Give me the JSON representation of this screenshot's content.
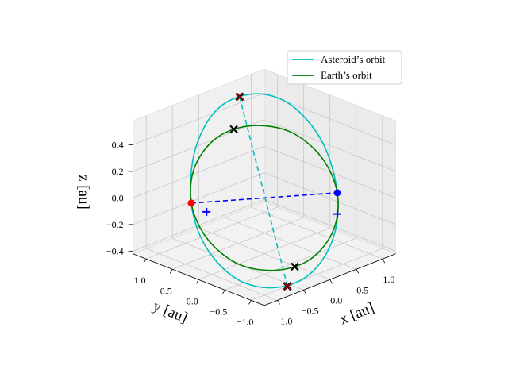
{
  "chart_data": {
    "type": "line3d",
    "xlabel": "x [au]",
    "ylabel": "y [au]",
    "zlabel": "z [au]",
    "xlim": [
      -1.25,
      1.25
    ],
    "ylim": [
      -1.25,
      1.25
    ],
    "zlim": [
      -0.42,
      0.58
    ],
    "xticks": [
      {
        "value": -1,
        "label": "−1.0"
      },
      {
        "value": -0.5,
        "label": "−0.5"
      },
      {
        "value": 0,
        "label": "0.0"
      },
      0.5,
      {
        "value": 1,
        "label": "1.0"
      }
    ],
    "yticks": [
      {
        "value": -1,
        "label": "−1.0"
      },
      {
        "value": -0.5,
        "label": "−0.5"
      },
      {
        "value": 0,
        "label": "0.0"
      },
      0.5,
      {
        "value": 1,
        "label": "1.0"
      }
    ],
    "zticks": [
      {
        "value": -0.4,
        "label": "−0.4"
      },
      {
        "value": -0.2,
        "label": "−0.2"
      },
      {
        "value": 0,
        "label": "0.0"
      },
      0.2,
      0.4
    ],
    "grid": true,
    "legend": "upper right",
    "series": [
      {
        "name": "Asteroid’s orbit",
        "color": "#00bfbf",
        "x": [
          0.82,
          0.98,
          0.87,
          0.54,
          0.05,
          -0.44,
          -0.82,
          -0.94,
          -0.81,
          -0.46,
          0.01,
          0.48
        ],
        "y": [
          -0.57,
          -0.12,
          0.38,
          0.76,
          0.95,
          0.88,
          0.57,
          0.17,
          -0.29,
          -0.66,
          -0.86,
          -0.83
        ],
        "z": [
          0,
          0.29,
          0.51,
          0.58,
          0.51,
          0.29,
          0,
          -0.25,
          -0.44,
          -0.5,
          -0.44,
          -0.25
        ]
      },
      {
        "name": "Earth’s orbit",
        "color": "#008000",
        "x": [
          0.82,
          0.98,
          0.88,
          0.54,
          0.06,
          -0.44,
          -0.82,
          -0.98,
          -0.88,
          -0.54,
          -0.06,
          0.44
        ],
        "y": [
          -0.57,
          -0.11,
          0.38,
          0.77,
          0.95,
          0.88,
          0.57,
          0.11,
          -0.38,
          -0.77,
          -0.95,
          -0.88
        ],
        "z": [
          0,
          0.17,
          0.3,
          0.34,
          0.3,
          0.17,
          0,
          -0.17,
          -0.3,
          -0.34,
          -0.3,
          -0.17
        ]
      }
    ],
    "lines": [
      {
        "color": "#0000ff",
        "x": [
          -0.82,
          0.82
        ],
        "y": [
          0.57,
          -0.57
        ],
        "z": [
          0,
          0
        ]
      },
      {
        "color": "#00bfbf",
        "x": [
          0.38,
          -0.31
        ],
        "y": [
          0.85,
          -0.75
        ],
        "z": [
          0.57,
          -0.5
        ]
      }
    ],
    "points": [
      {
        "marker": "o",
        "color": "#ff0000",
        "x": -0.82,
        "y": 0.57,
        "z": 0
      },
      {
        "marker": "o",
        "color": "#0000ff",
        "x": 0.82,
        "y": -0.57,
        "z": 0
      },
      {
        "marker": "+",
        "color": "#0000ff",
        "x": -0.5,
        "y": 0.6,
        "z": -0.12
      },
      {
        "marker": "+",
        "color": "#0000ff",
        "x": 0.82,
        "y": -0.57,
        "z": -0.16
      },
      {
        "marker": "x",
        "color": "#000000",
        "x": 0.31,
        "y": 0.89,
        "z": 0.33
      },
      {
        "marker": "x",
        "color": "#000000",
        "x": -0.31,
        "y": -0.89,
        "z": -0.33
      },
      {
        "marker": "x",
        "color": "#b00000",
        "x": 0.38,
        "y": 0.85,
        "z": 0.57
      },
      {
        "marker": "x",
        "color": "#b00000",
        "x": -0.31,
        "y": -0.75,
        "z": -0.5
      }
    ]
  }
}
